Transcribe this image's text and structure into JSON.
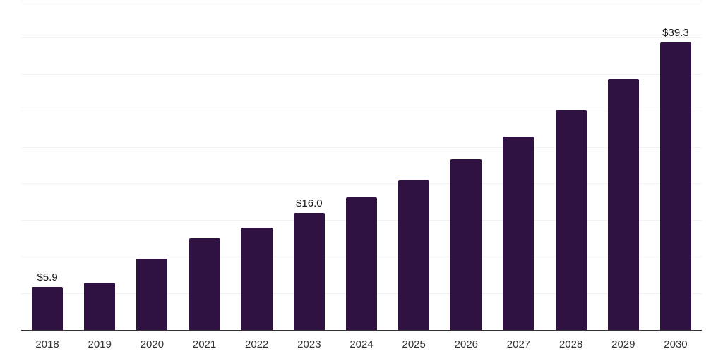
{
  "chart_data": {
    "type": "bar",
    "title": "",
    "xlabel": "",
    "ylabel": "",
    "categories": [
      "2018",
      "2019",
      "2020",
      "2021",
      "2022",
      "2023",
      "2024",
      "2025",
      "2026",
      "2027",
      "2028",
      "2029",
      "2030"
    ],
    "values": [
      5.9,
      6.5,
      9.7,
      12.5,
      14.0,
      16.0,
      18.1,
      20.5,
      23.3,
      26.4,
      30.1,
      34.3,
      39.3
    ],
    "bar_labels": [
      "$5.9",
      "",
      "",
      "",
      "",
      "$16.0",
      "",
      "",
      "",
      "",
      "",
      "",
      "$39.3"
    ],
    "value_prefix": "$",
    "ylim": [
      0,
      45
    ],
    "gridline_step": 5,
    "grid": true,
    "legend": "none",
    "y_tick_labels_visible": false,
    "colors": {
      "bar": "#2f1242",
      "axis": "#333333",
      "gridline": "#f2f2f2",
      "bar_label": "#111111",
      "tick_label": "#333333",
      "background": "#ffffff"
    }
  }
}
